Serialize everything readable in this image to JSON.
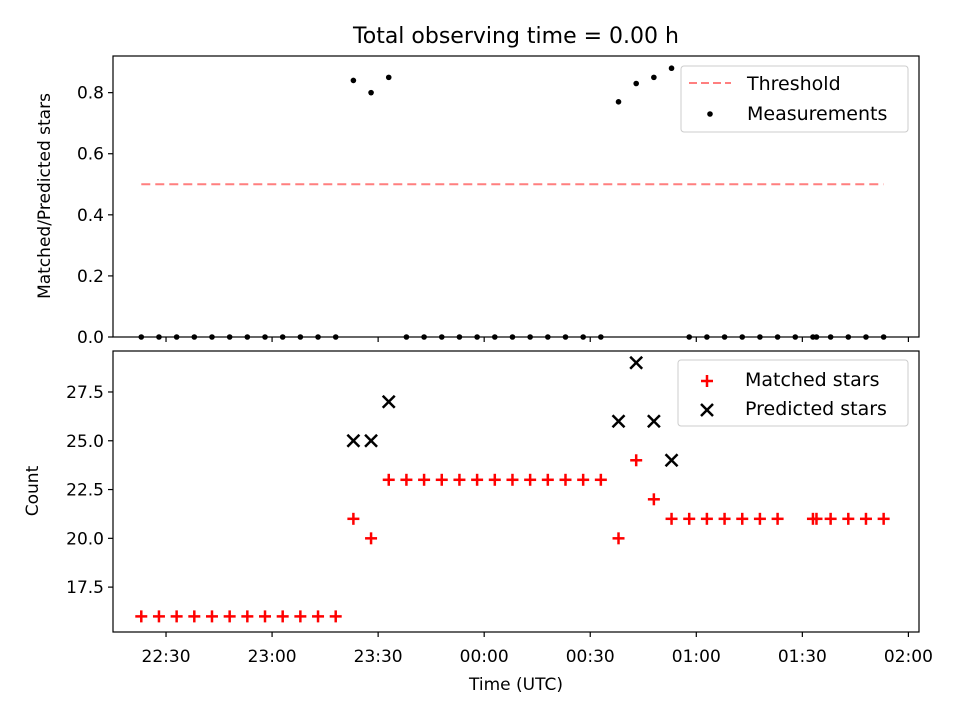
{
  "title": "Total observing time = 0.00 h",
  "xlabel": "Time (UTC)",
  "xticks": [
    "22:30",
    "23:00",
    "23:30",
    "00:00",
    "00:30",
    "01:00",
    "01:30",
    "02:00"
  ],
  "colors": {
    "threshold": "#ff7f7f",
    "measurements": "#000000",
    "matched": "#ff0000",
    "predicted": "#000000"
  },
  "chart_data": [
    {
      "type": "scatter",
      "ylabel": "Matched/Predicted stars",
      "x_axis": {
        "type": "time",
        "range": [
          "22:15",
          "02:03"
        ],
        "ticks": [
          "22:30",
          "23:00",
          "23:30",
          "00:00",
          "00:30",
          "01:00",
          "01:30",
          "02:00"
        ]
      },
      "yticks": [
        "0.0",
        "0.2",
        "0.4",
        "0.6",
        "0.8"
      ],
      "ylim": [
        0.0,
        0.92
      ],
      "legend_position": "top-right",
      "series": [
        {
          "name": "Threshold",
          "kind": "line",
          "style": "dashed",
          "color": "#ff7f7f",
          "x": [
            "22:23",
            "01:53"
          ],
          "y": [
            0.5,
            0.5
          ]
        },
        {
          "name": "Measurements",
          "kind": "scatter",
          "marker": "dot",
          "color": "#000000",
          "x": [
            "22:23",
            "22:28",
            "22:33",
            "22:38",
            "22:43",
            "22:48",
            "22:53",
            "22:58",
            "23:03",
            "23:08",
            "23:13",
            "23:18",
            "23:23",
            "23:28",
            "23:33",
            "23:38",
            "23:43",
            "23:48",
            "23:53",
            "23:58",
            "00:03",
            "00:08",
            "00:13",
            "00:18",
            "00:23",
            "00:28",
            "00:33",
            "00:38",
            "00:43",
            "00:48",
            "00:53",
            "00:58",
            "01:03",
            "01:08",
            "01:13",
            "01:18",
            "01:23",
            "01:28",
            "01:33",
            "01:38",
            "01:43",
            "01:48",
            "01:53",
            "01:34"
          ],
          "y": [
            0,
            0,
            0,
            0,
            0,
            0,
            0,
            0,
            0,
            0,
            0,
            0,
            0.84,
            0.8,
            0.85,
            0,
            0,
            0,
            0,
            0,
            0,
            0,
            0,
            0,
            0,
            0,
            0,
            0.77,
            0.83,
            0.85,
            0.88,
            0,
            0,
            0,
            0,
            0,
            0,
            0,
            0,
            0,
            0,
            0,
            0,
            0
          ]
        }
      ]
    },
    {
      "type": "scatter",
      "ylabel": "Count",
      "xlabel": "Time (UTC)",
      "x_axis": {
        "type": "time",
        "range": [
          "22:15",
          "02:03"
        ],
        "ticks": [
          "22:30",
          "23:00",
          "23:30",
          "00:00",
          "00:30",
          "01:00",
          "01:30",
          "02:00"
        ]
      },
      "yticks": [
        "17.5",
        "20.0",
        "22.5",
        "25.0",
        "27.5"
      ],
      "ylim": [
        15.2,
        29.6
      ],
      "legend_position": "top-right",
      "series": [
        {
          "name": "Matched stars",
          "kind": "scatter",
          "marker": "plus",
          "color": "#ff0000",
          "x": [
            "22:23",
            "22:28",
            "22:33",
            "22:38",
            "22:43",
            "22:48",
            "22:53",
            "22:58",
            "23:03",
            "23:08",
            "23:13",
            "23:18",
            "23:23",
            "23:28",
            "23:33",
            "23:38",
            "23:43",
            "23:48",
            "23:53",
            "23:58",
            "00:03",
            "00:08",
            "00:13",
            "00:18",
            "00:23",
            "00:28",
            "00:33",
            "00:38",
            "00:43",
            "00:48",
            "00:53",
            "00:58",
            "01:03",
            "01:08",
            "01:13",
            "01:18",
            "01:23",
            "01:33",
            "01:34",
            "01:38",
            "01:43",
            "01:48",
            "01:53"
          ],
          "y": [
            16,
            16,
            16,
            16,
            16,
            16,
            16,
            16,
            16,
            16,
            16,
            16,
            21,
            20,
            23,
            23,
            23,
            23,
            23,
            23,
            23,
            23,
            23,
            23,
            23,
            23,
            23,
            20,
            24,
            22,
            21,
            21,
            21,
            21,
            21,
            21,
            21,
            21,
            21,
            21,
            21,
            21,
            21
          ]
        },
        {
          "name": "Predicted stars",
          "kind": "scatter",
          "marker": "x",
          "color": "#000000",
          "x": [
            "23:23",
            "23:28",
            "23:33",
            "00:38",
            "00:43",
            "00:48",
            "00:53"
          ],
          "y": [
            25,
            25,
            27,
            26,
            29,
            26,
            24
          ]
        }
      ]
    }
  ]
}
